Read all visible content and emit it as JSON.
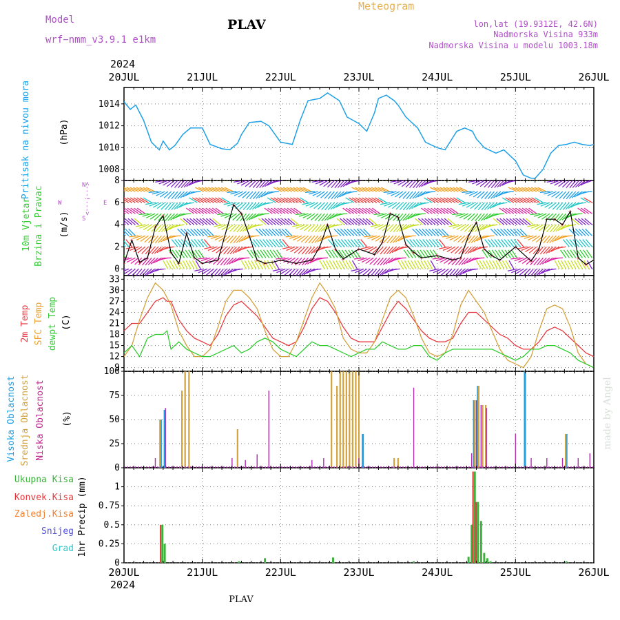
{
  "header": {
    "model_label": "Model",
    "model_name": "wrf−nmm_v3.9.1  e1km",
    "station": "PLAV",
    "product": "Meteogram",
    "coords": "lon,lat (19.9312E, 42.6N)",
    "elevation": "Nadmorska Visina 933m",
    "model_elevation": "Nadmorska Visina u modelu 1003.18m"
  },
  "footer": {
    "station": "PLAV",
    "credit": "made by Angel"
  },
  "colors": {
    "pressure": "#1ea0e6",
    "temp2m": "#e8393f",
    "sfc": "#d4a23c",
    "dewpt": "#2ecc2e",
    "high_cloud": "#1ea0e6",
    "mid_cloud": "#d4a23c",
    "low_cloud": "#b02db0",
    "total_precip": "#3cb43c",
    "convective": "#e8393f",
    "freezing": "#f08030",
    "snow": "#5050e0",
    "graupel": "#30c8c8"
  },
  "chart_data": [
    {
      "type": "line",
      "panel": "pressure",
      "year": "2024",
      "x_ticks": [
        "20JUL",
        "21JUL",
        "22JUL",
        "23JUL",
        "24JUL",
        "25JUL",
        "26JUL"
      ],
      "ylabel_left": "Pritisak na nivou mora",
      "ylabel_unit": "(hPa)",
      "ylim": [
        1007,
        1015.5
      ],
      "y_ticks": [
        1008,
        1010,
        1012,
        1014
      ],
      "series": [
        {
          "name": "Pritisak na nivou mora",
          "x": [
            0,
            0.08,
            0.15,
            0.25,
            0.35,
            0.45,
            0.5,
            0.58,
            0.65,
            0.75,
            0.85,
            1.0,
            1.1,
            1.25,
            1.35,
            1.45,
            1.5,
            1.6,
            1.75,
            1.85,
            2.0,
            2.15,
            2.25,
            2.35,
            2.5,
            2.6,
            2.75,
            2.85,
            3.0,
            3.1,
            3.2,
            3.25,
            3.35,
            3.45,
            3.5,
            3.6,
            3.75,
            3.85,
            4.0,
            4.1,
            4.25,
            4.35,
            4.45,
            4.5,
            4.6,
            4.75,
            4.85,
            5.0,
            5.1,
            5.2,
            5.25,
            5.35,
            5.45,
            5.55,
            5.65,
            5.75,
            5.85,
            5.95,
            6.0
          ],
          "y": [
            1014.2,
            1013.5,
            1013.9,
            1012.5,
            1010.5,
            1009.8,
            1010.6,
            1009.8,
            1010.2,
            1011.2,
            1011.8,
            1011.8,
            1010.3,
            1009.9,
            1009.8,
            1010.4,
            1011.2,
            1012.3,
            1012.4,
            1012.0,
            1010.5,
            1010.3,
            1012.5,
            1014.3,
            1014.5,
            1015.0,
            1014.3,
            1012.8,
            1012.2,
            1011.5,
            1013.2,
            1014.5,
            1014.8,
            1014.3,
            1013.9,
            1012.8,
            1011.8,
            1010.5,
            1010.0,
            1009.8,
            1011.5,
            1011.8,
            1011.5,
            1010.8,
            1010.0,
            1009.5,
            1009.8,
            1008.8,
            1007.5,
            1007.2,
            1007.2,
            1008.0,
            1009.5,
            1010.2,
            1010.3,
            1010.5,
            1010.3,
            1010.2,
            1010.3
          ]
        }
      ]
    },
    {
      "type": "line",
      "panel": "wind",
      "x_ticks": [
        "20JUL",
        "21JUL",
        "22JUL",
        "23JUL",
        "24JUL",
        "25JUL",
        "26JUL"
      ],
      "ylabel_left": [
        "10m Vjetar",
        "Brzina i Pravac"
      ],
      "ylabel_unit": "(m/s)",
      "compass": {
        "n": "N",
        "s": "S",
        "e": "E",
        "w": "W",
        "arrow": "<---!--->"
      },
      "ylim": [
        -0.6,
        8
      ],
      "y_ticks": [
        0,
        2,
        4,
        6,
        8
      ],
      "series": [
        {
          "name": "10m Vjetar",
          "x": [
            0,
            0.1,
            0.2,
            0.3,
            0.4,
            0.5,
            0.6,
            0.7,
            0.8,
            0.9,
            1.0,
            1.2,
            1.4,
            1.5,
            1.6,
            1.7,
            1.8,
            1.9,
            2.0,
            2.2,
            2.4,
            2.5,
            2.6,
            2.7,
            2.8,
            3.0,
            3.2,
            3.3,
            3.4,
            3.5,
            3.6,
            3.7,
            3.8,
            4.0,
            4.2,
            4.3,
            4.4,
            4.5,
            4.6,
            4.7,
            4.8,
            5.0,
            5.2,
            5.3,
            5.4,
            5.5,
            5.6,
            5.7,
            5.8,
            5.9,
            6.0
          ],
          "y": [
            0.5,
            2.6,
            0.6,
            1.0,
            3.8,
            4.8,
            1.5,
            0.5,
            3.2,
            1.0,
            0.5,
            0.8,
            5.8,
            5.0,
            3.0,
            0.8,
            0.5,
            0.6,
            0.8,
            0.5,
            0.8,
            2.0,
            4.0,
            1.8,
            0.9,
            1.8,
            1.3,
            2.4,
            5.0,
            4.7,
            2.2,
            1.5,
            1.0,
            1.2,
            0.8,
            1.0,
            3.0,
            4.2,
            1.8,
            1.2,
            0.8,
            2.0,
            0.7,
            1.8,
            4.5,
            4.5,
            4.0,
            5.2,
            1.0,
            0.4,
            0.8
          ]
        }
      ]
    },
    {
      "type": "line",
      "panel": "temperature",
      "x_ticks": [
        "20JUL",
        "21JUL",
        "22JUL",
        "23JUL",
        "24JUL",
        "25JUL",
        "26JUL"
      ],
      "ylabel_left": [
        "2m Temp",
        "SFC Temp",
        "dewpt Temp"
      ],
      "ylabel_unit": "(C)",
      "ylim": [
        8,
        34
      ],
      "y_ticks": [
        9,
        12,
        15,
        18,
        21,
        24,
        27,
        30,
        33
      ],
      "x": [
        0,
        0.1,
        0.2,
        0.3,
        0.4,
        0.5,
        0.55,
        0.6,
        0.7,
        0.8,
        0.9,
        1.0,
        1.1,
        1.2,
        1.3,
        1.4,
        1.5,
        1.6,
        1.7,
        1.8,
        1.9,
        2.0,
        2.1,
        2.2,
        2.3,
        2.4,
        2.5,
        2.6,
        2.7,
        2.8,
        2.9,
        3.0,
        3.1,
        3.2,
        3.3,
        3.4,
        3.5,
        3.6,
        3.7,
        3.8,
        3.9,
        4.0,
        4.1,
        4.2,
        4.3,
        4.4,
        4.5,
        4.6,
        4.7,
        4.8,
        4.9,
        5.0,
        5.1,
        5.2,
        5.3,
        5.4,
        5.5,
        5.6,
        5.7,
        5.8,
        5.9,
        6.0
      ],
      "series": [
        {
          "name": "2m Temp",
          "y": [
            19,
            21,
            21,
            24,
            27,
            28,
            27,
            27,
            22,
            19,
            17,
            16,
            15,
            18,
            23,
            26,
            27,
            25,
            23,
            20,
            17,
            16,
            15,
            16,
            20,
            25,
            28,
            27,
            24,
            20,
            17,
            16,
            16,
            16,
            20,
            24,
            27,
            25,
            22,
            19,
            17,
            16,
            16,
            17,
            21,
            24,
            24,
            22,
            20,
            18,
            17,
            15,
            14,
            14,
            16,
            19,
            20,
            19,
            17,
            15,
            13,
            12
          ]
        },
        {
          "name": "SFC Temp",
          "y": [
            12,
            15,
            22,
            28,
            32,
            30,
            28,
            26,
            19,
            15,
            12,
            12,
            14,
            20,
            27,
            30,
            30,
            28,
            25,
            19,
            14,
            12,
            12,
            16,
            22,
            28,
            32,
            29,
            25,
            17,
            14,
            13,
            13,
            16,
            22,
            28,
            30,
            28,
            23,
            17,
            13,
            12,
            13,
            18,
            26,
            30,
            27,
            24,
            19,
            14,
            11,
            10,
            9,
            12,
            19,
            25,
            26,
            25,
            20,
            13,
            10,
            9
          ]
        },
        {
          "name": "dewpt Temp",
          "y": [
            13,
            15,
            12,
            17,
            18,
            18,
            19,
            14,
            16,
            14,
            13,
            12,
            12,
            13,
            14,
            15,
            13,
            14,
            16,
            17,
            16,
            14,
            13,
            12,
            14,
            16,
            15,
            15,
            14,
            13,
            12,
            13,
            14,
            14,
            16,
            15,
            14,
            14,
            15,
            15,
            12,
            11,
            13,
            14,
            14,
            14,
            14,
            14,
            14,
            13,
            12,
            11,
            12,
            14,
            14,
            15,
            15,
            14,
            13,
            11,
            10,
            9
          ]
        }
      ]
    },
    {
      "type": "bar",
      "panel": "clouds",
      "x_ticks": [
        "20JUL",
        "21JUL",
        "22JUL",
        "23JUL",
        "24JUL",
        "25JUL",
        "26JUL"
      ],
      "ylabel_left": [
        "Visoka Oblacnost",
        "Srednja Oblacnost",
        "Niska Oblacnost"
      ],
      "ylabel_unit": "(%)",
      "ylim": [
        0,
        100
      ],
      "y_ticks": [
        0,
        25,
        50,
        75,
        100
      ],
      "series": [
        {
          "name": "Visoka Oblacnost",
          "x": [
            0.47,
            0.52,
            3.05,
            4.47,
            4.52,
            5.12,
            5.65
          ],
          "values": [
            50,
            60,
            35,
            70,
            85,
            100,
            35
          ]
        },
        {
          "name": "Srednja Oblacnost",
          "x": [
            0.46,
            0.74,
            0.78,
            0.83,
            1.45,
            2.65,
            2.72,
            2.76,
            2.8,
            2.84,
            2.88,
            2.92,
            2.96,
            3.0,
            3.45,
            3.5,
            4.48,
            4.53,
            4.58,
            4.62,
            5.64
          ],
          "values": [
            50,
            80,
            100,
            100,
            40,
            100,
            85,
            100,
            100,
            100,
            100,
            100,
            100,
            100,
            10,
            10,
            70,
            85,
            65,
            65,
            35
          ]
        },
        {
          "name": "Niska Oblacnost",
          "x": [
            0.4,
            0.53,
            1.38,
            1.55,
            1.7,
            1.85,
            2.4,
            2.55,
            3.0,
            3.7,
            4.44,
            4.5,
            4.56,
            4.63,
            5.0,
            5.2,
            5.4,
            5.6,
            5.8,
            5.95
          ],
          "values": [
            10,
            62,
            10,
            8,
            14,
            80,
            8,
            10,
            10,
            83,
            15,
            70,
            65,
            62,
            35,
            10,
            10,
            10,
            10,
            15
          ]
        }
      ]
    },
    {
      "type": "bar",
      "panel": "precip",
      "x_ticks": [
        "20JUL",
        "21JUL",
        "22JUL",
        "23JUL",
        "24JUL",
        "25JUL",
        "26JUL"
      ],
      "year": "2024",
      "ylabel_unit": "1hr Precip (mm)",
      "legend": [
        "Ukupna Kisa",
        "Konvek.Kisa",
        "Zaledj.Kisa",
        "Snijeg",
        "Grad"
      ],
      "ylim": [
        0,
        1.25
      ],
      "y_ticks": [
        0,
        0.25,
        0.5,
        0.75,
        1
      ],
      "series": [
        {
          "name": "Ukupna Kisa",
          "x": [
            0.49,
            0.52,
            1.47,
            1.8,
            2.67,
            3.7,
            4.4,
            4.44,
            4.48,
            4.52,
            4.56,
            4.6,
            4.64,
            4.68,
            5.65
          ],
          "values": [
            0.5,
            0.25,
            0.02,
            0.06,
            0.07,
            0.02,
            0.08,
            0.5,
            1.2,
            0.8,
            0.55,
            0.13,
            0.06,
            0.02,
            0.02
          ]
        },
        {
          "name": "Konvek.Kisa",
          "x": [
            0.48,
            4.47,
            4.51
          ],
          "values": [
            0.5,
            1.2,
            0.8
          ]
        }
      ]
    }
  ]
}
